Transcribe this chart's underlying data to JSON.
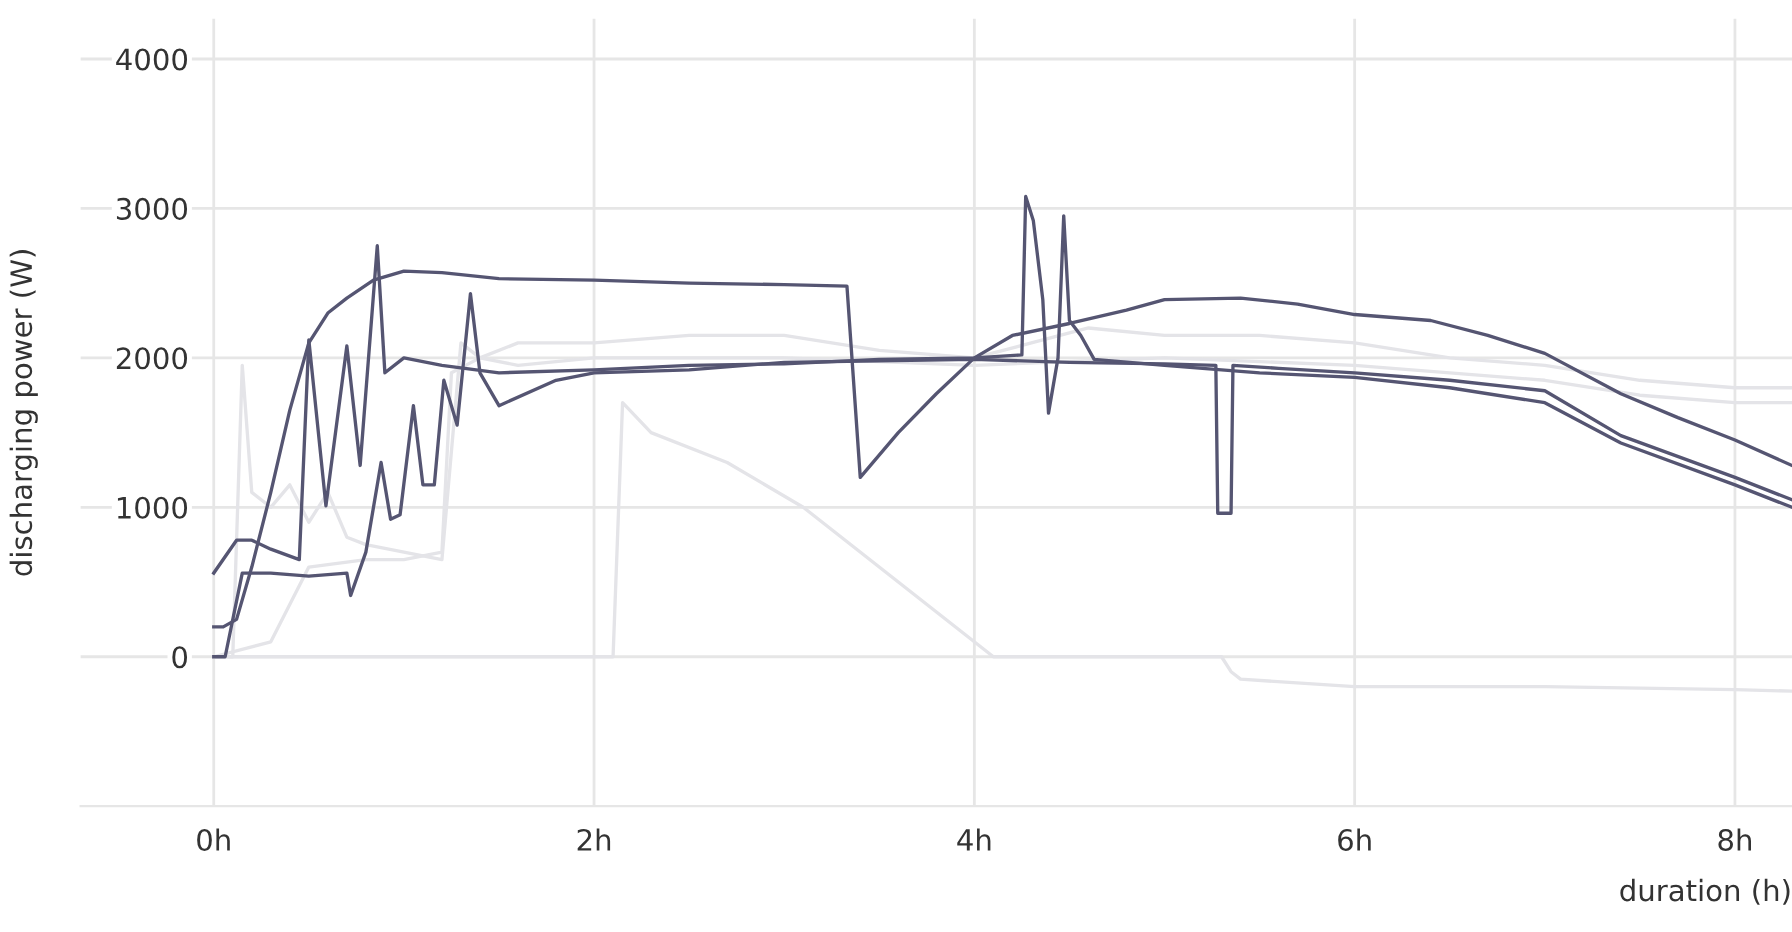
{
  "chart_data": {
    "type": "line",
    "xlabel": "duration (h)",
    "ylabel": "discharging power (W)",
    "xlim": [
      -0.7,
      8.3
    ],
    "ylim": [
      -1000,
      4270
    ],
    "xticks": [
      {
        "value": 0,
        "label": "0h"
      },
      {
        "value": 2,
        "label": "2h"
      },
      {
        "value": 4,
        "label": "4h"
      },
      {
        "value": 6,
        "label": "6h"
      },
      {
        "value": 8,
        "label": "8h"
      }
    ],
    "yticks": [
      0,
      1000,
      2000,
      3000,
      4000
    ],
    "grid": true,
    "marker": "none",
    "line_style": "solid",
    "series": [
      {
        "color": "#e4e4e8",
        "x": [
          0,
          0.1,
          0.15,
          0.2,
          0.3,
          0.4,
          0.5,
          0.6,
          0.7,
          0.8,
          1.0,
          1.2,
          1.3,
          1.4,
          1.6,
          2.0,
          2.5,
          3.0,
          3.5,
          4.0,
          4.3,
          4.6,
          5.0,
          5.5,
          6.0,
          6.5,
          7.0,
          7.5,
          8.0,
          8.3
        ],
        "values": [
          0,
          0,
          1950,
          1100,
          1000,
          1150,
          900,
          1100,
          800,
          750,
          700,
          650,
          2100,
          2000,
          2100,
          2100,
          2150,
          2150,
          2050,
          2000,
          2100,
          2200,
          2150,
          2150,
          2100,
          2000,
          1950,
          1850,
          1800,
          1800
        ]
      },
      {
        "color": "#e4e4e8",
        "x": [
          0,
          0.3,
          0.5,
          0.8,
          1.0,
          1.2,
          1.25,
          1.4,
          1.6,
          2.0,
          3.0,
          4.0,
          5.0,
          6.0,
          6.5,
          7.0,
          7.5,
          8.0,
          8.3
        ],
        "values": [
          0,
          100,
          600,
          650,
          650,
          700,
          1900,
          2000,
          1950,
          2000,
          2000,
          1950,
          2000,
          1950,
          1900,
          1850,
          1750,
          1700,
          1700
        ]
      },
      {
        "color": "#e4e4e8",
        "x": [
          0,
          2.1,
          2.15,
          2.3,
          2.7,
          3.1,
          3.6,
          4.1,
          5.3,
          5.35,
          5.4,
          6.0,
          7.0,
          8.0,
          8.3
        ],
        "values": [
          0,
          0,
          1700,
          1500,
          1300,
          1000,
          500,
          0,
          0,
          -100,
          -150,
          -200,
          -200,
          -220,
          -230
        ]
      },
      {
        "color": "#555572",
        "x": [
          0,
          0.05,
          0.12,
          0.2,
          0.3,
          0.4,
          0.5,
          0.6,
          0.7,
          0.84,
          1.0,
          1.2,
          1.5,
          2.0,
          2.5,
          3.0,
          3.33,
          3.4,
          3.6,
          3.8,
          4.0,
          4.2,
          4.5,
          4.8,
          5.0,
          5.4,
          5.7,
          6.0,
          6.4,
          6.7,
          7.0,
          7.4,
          7.7,
          8.0,
          8.3
        ],
        "values": [
          200,
          200,
          250,
          600,
          1100,
          1650,
          2100,
          2300,
          2400,
          2520,
          2580,
          2570,
          2530,
          2520,
          2500,
          2490,
          2480,
          1200,
          1500,
          1760,
          2000,
          2150,
          2230,
          2320,
          2390,
          2400,
          2360,
          2290,
          2250,
          2150,
          2030,
          1760,
          1600,
          1450,
          1280
        ]
      },
      {
        "color": "#555572",
        "x": [
          0,
          0.06,
          0.15,
          0.3,
          0.5,
          0.7,
          0.72,
          0.8,
          0.88,
          0.93,
          0.98,
          1.05,
          1.1,
          1.16,
          1.21,
          1.28,
          1.35,
          1.4,
          1.5,
          1.8,
          2.0,
          2.5,
          3.0,
          3.5,
          4.0,
          4.5,
          5.0,
          5.27,
          5.28,
          5.35,
          5.36,
          5.6,
          6.0,
          6.5,
          7.0,
          7.4,
          8.0,
          8.3
        ],
        "values": [
          0,
          0,
          560,
          560,
          540,
          560,
          410,
          700,
          1300,
          920,
          950,
          1680,
          1150,
          1150,
          1850,
          1550,
          2430,
          1900,
          1680,
          1850,
          1900,
          1920,
          1970,
          1980,
          1990,
          1970,
          1960,
          1950,
          960,
          960,
          1950,
          1930,
          1900,
          1850,
          1780,
          1480,
          1200,
          1050
        ]
      },
      {
        "color": "#555572",
        "x": [
          0,
          0.12,
          0.2,
          0.3,
          0.45,
          0.5,
          0.59,
          0.7,
          0.77,
          0.86,
          0.9,
          1.0,
          1.2,
          1.5,
          2.0,
          2.5,
          3.0,
          3.5,
          4.0,
          4.25,
          4.27,
          4.31,
          4.36,
          4.39,
          4.44,
          4.47,
          4.5,
          4.56,
          4.63,
          5.0,
          5.5,
          6.0,
          6.5,
          7.0,
          7.4,
          8.0,
          8.3
        ],
        "values": [
          560,
          780,
          780,
          720,
          650,
          2120,
          1010,
          2080,
          1280,
          2750,
          1900,
          2000,
          1950,
          1900,
          1920,
          1950,
          1960,
          1990,
          2000,
          2020,
          3080,
          2920,
          2390,
          1630,
          2000,
          2950,
          2250,
          2150,
          1990,
          1950,
          1900,
          1870,
          1800,
          1700,
          1430,
          1150,
          1000
        ]
      }
    ]
  }
}
